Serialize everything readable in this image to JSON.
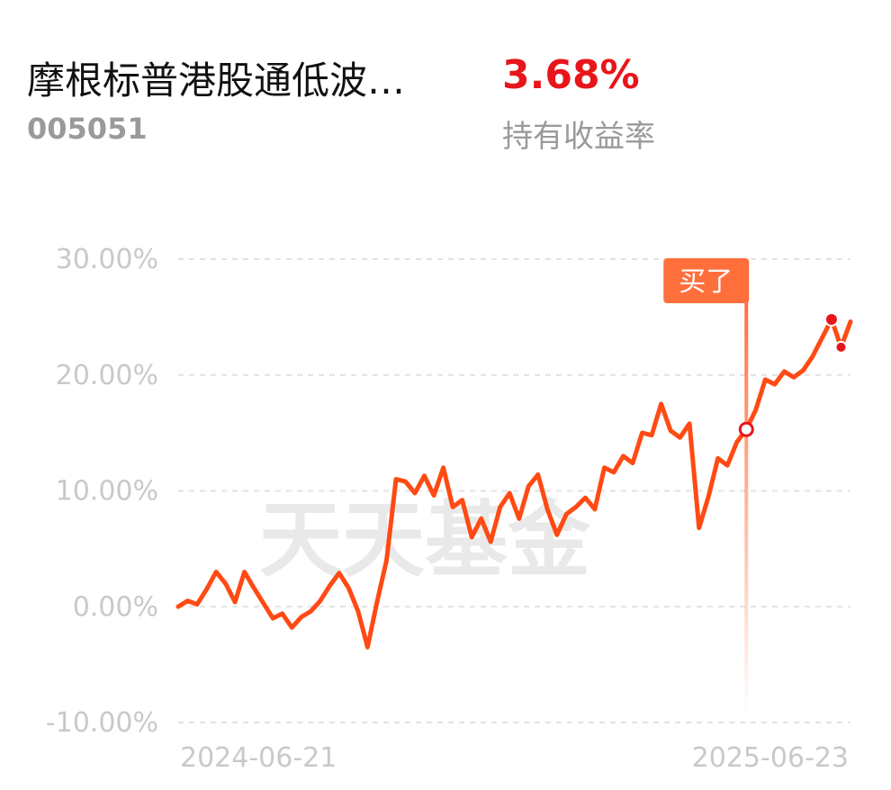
{
  "header": {
    "fund_name": "摩根标普港股通低波…",
    "fund_code": "005051",
    "return_value": "3.68%",
    "return_label": "持有收益率"
  },
  "watermark": "天天基金",
  "chart_data": {
    "type": "line",
    "ylim": [
      -10,
      30
    ],
    "yticks": [
      30,
      20,
      10,
      0,
      -10
    ],
    "ytick_labels": [
      "30.00%",
      "20.00%",
      "10.00%",
      "0.00%",
      "-10.00%"
    ],
    "xtick_labels": [
      "2024-06-21",
      "2025-06-23"
    ],
    "grid": true,
    "line_color": "#ff4a14",
    "marker_color": "#e8151b",
    "annotation": {
      "label": "买了",
      "x_index": 39,
      "color": "#ff6f3c"
    },
    "series": [
      {
        "values": [
          0.0,
          0.8,
          0.3,
          1.5,
          3.0,
          2.2,
          0.5,
          3.0,
          1.5,
          0.2,
          -1.2,
          -0.8,
          -1.9,
          -1.0,
          -0.5,
          0.4,
          1.8,
          2.8,
          1.6,
          -0.5,
          -3.5,
          0.5,
          4.0,
          11.0,
          10.8,
          10.2,
          11.2,
          9.5,
          12.0,
          8.5,
          9.0,
          6.0,
          7.5,
          5.5,
          8.5,
          9.8,
          7.5,
          10.2,
          11.4,
          6.0
        ]
      },
      {
        "values": [
          15.3,
          17.5,
          19.5,
          20.2,
          19.8,
          20.4,
          21.5,
          23.0,
          24.8,
          22.5,
          24.6
        ]
      }
    ],
    "full_series": [
      0.0,
      0.5,
      0.2,
      1.5,
      3.0,
      2.0,
      0.4,
      3.0,
      1.6,
      0.3,
      -1.0,
      -0.6,
      -1.8,
      -0.9,
      -0.4,
      0.5,
      1.8,
      2.9,
      1.6,
      -0.4,
      -3.5,
      0.4,
      4.0,
      11.0,
      10.8,
      9.8,
      11.3,
      9.6,
      12.0,
      8.6,
      9.2,
      6.0,
      7.6,
      5.6,
      8.6,
      9.8,
      7.6,
      10.4,
      11.4,
      8.4,
      6.2,
      8.0,
      8.6,
      9.4,
      8.4,
      12.0,
      11.6,
      13.0,
      12.4,
      15.0,
      14.8,
      17.5,
      15.2,
      14.6,
      15.8,
      6.8,
      9.5,
      12.8,
      12.2,
      14.2,
      15.3,
      17.0,
      19.6,
      19.2,
      20.3,
      19.8,
      20.4,
      21.6,
      23.2,
      24.8,
      22.4,
      24.6
    ]
  }
}
